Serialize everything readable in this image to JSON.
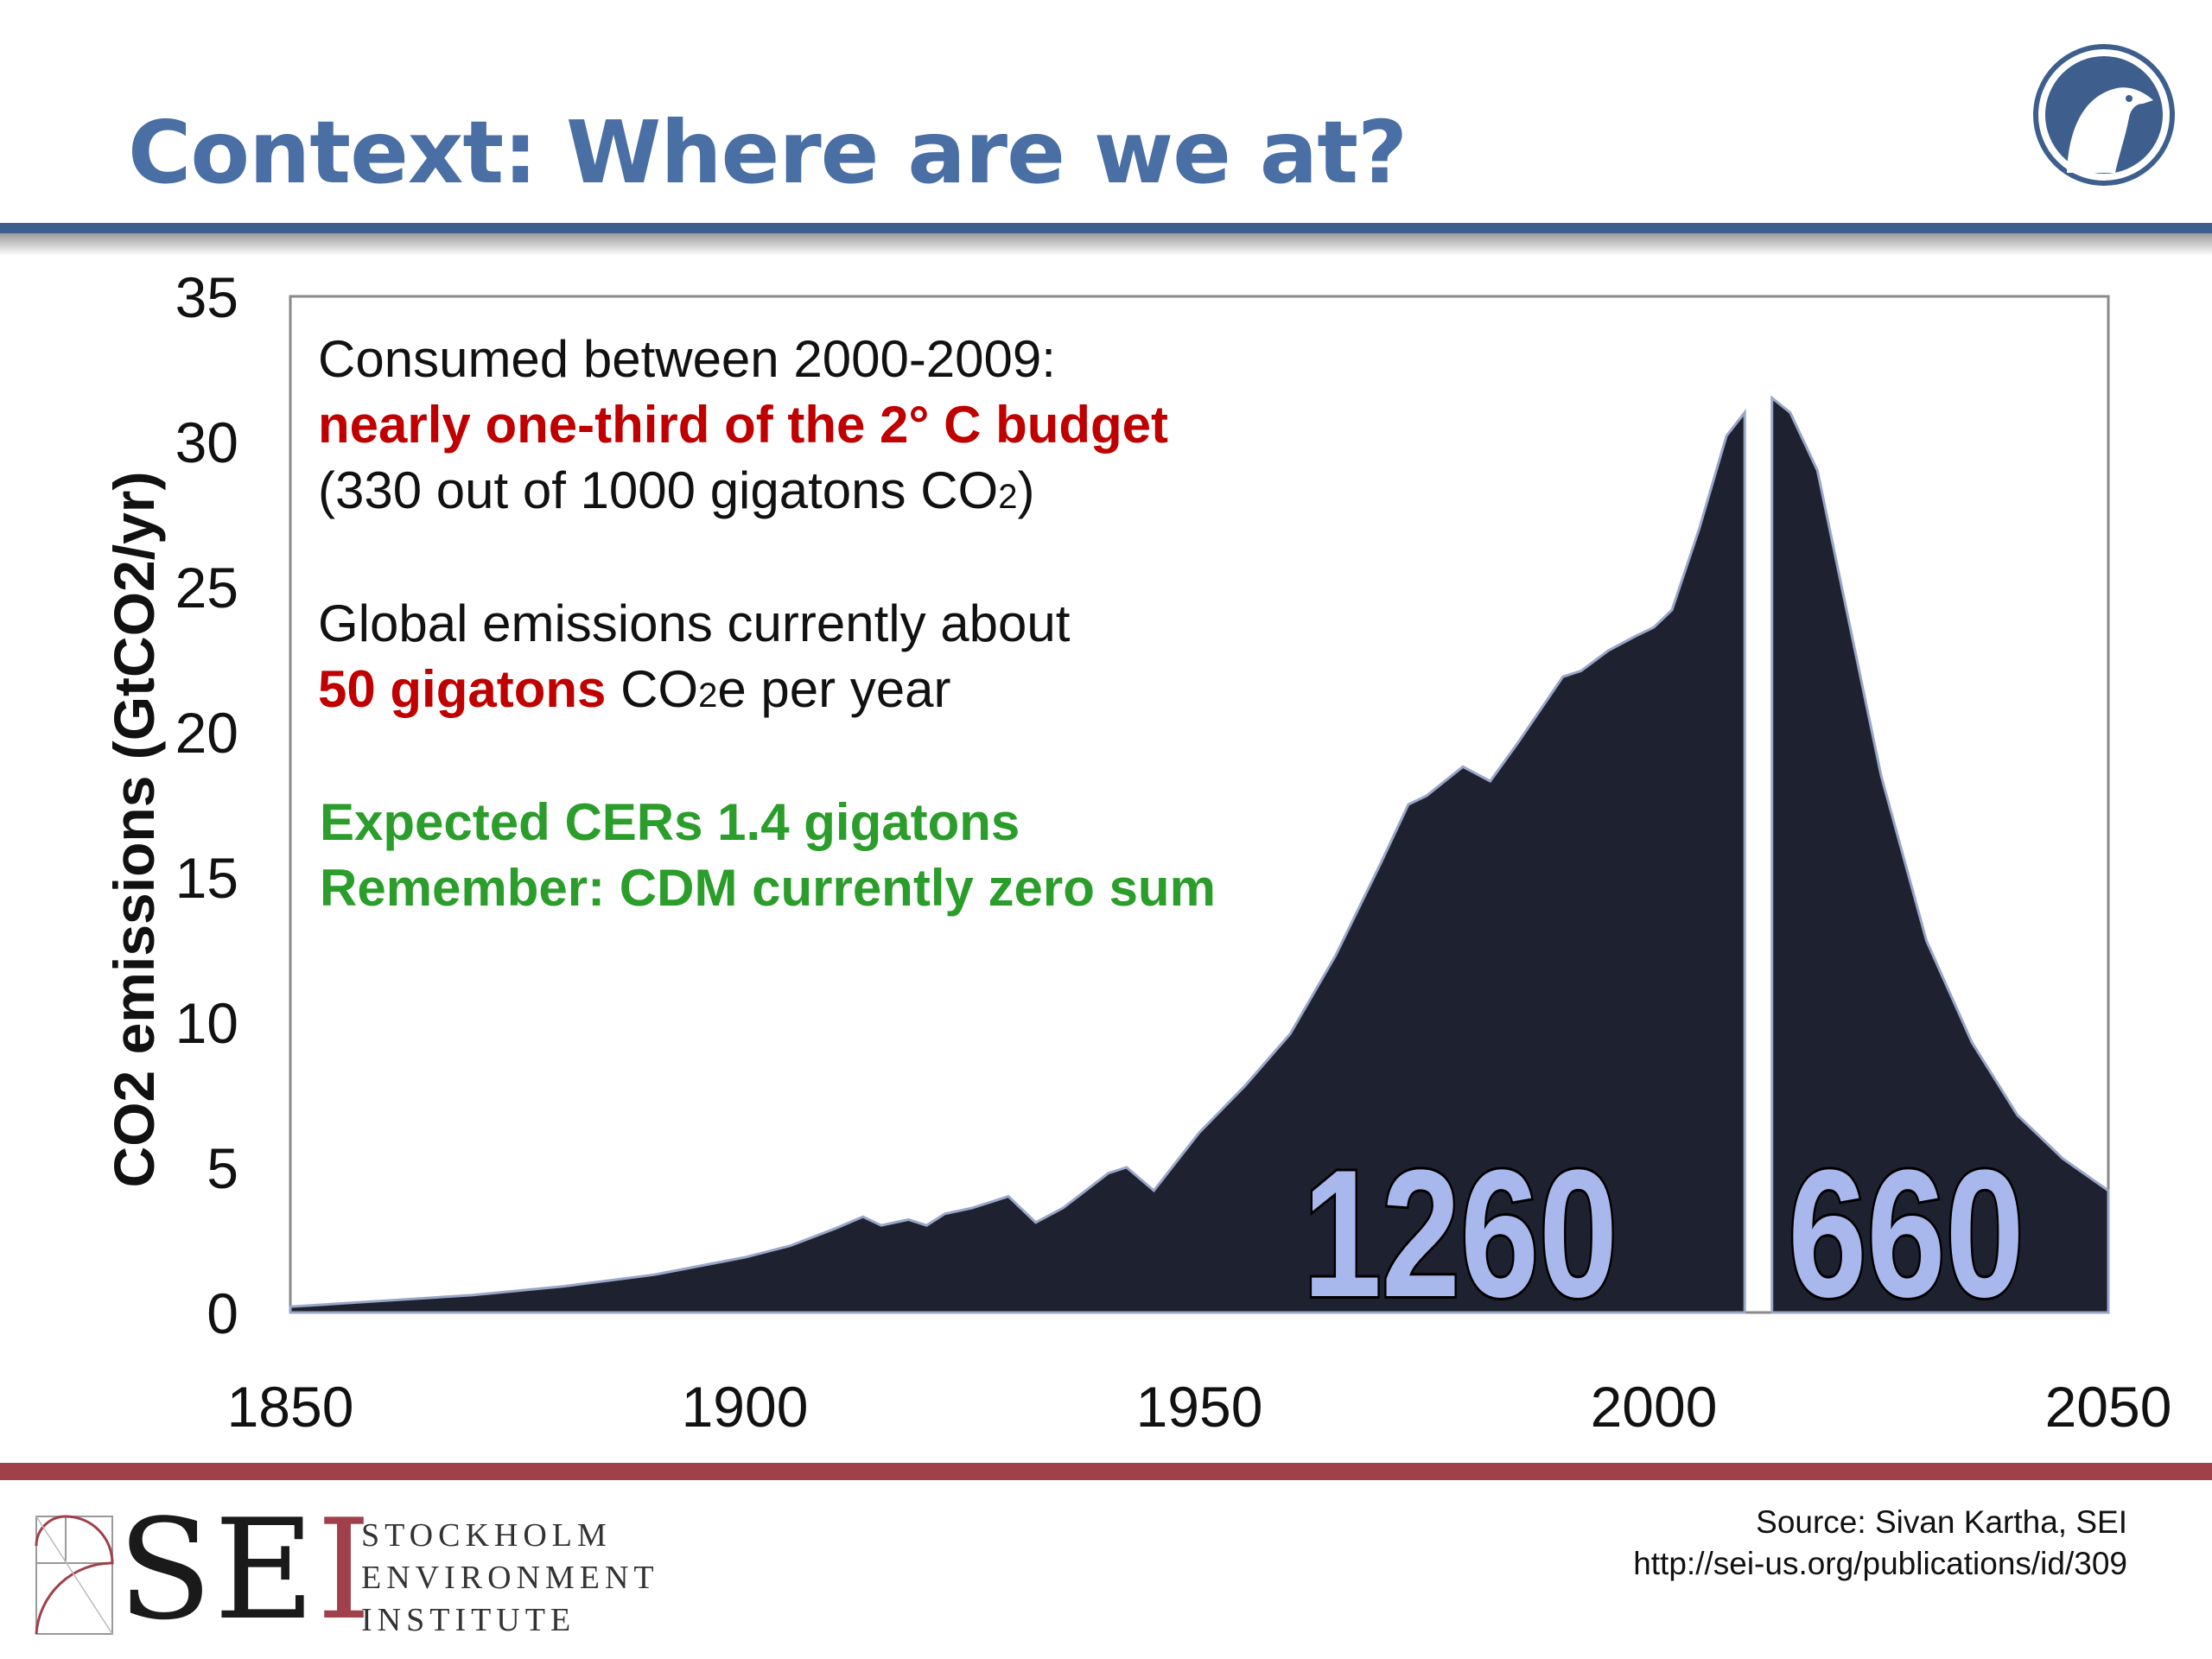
{
  "slide": {
    "title": "Context: Where are we at?",
    "colors": {
      "title": "#4a6fa5",
      "top_bar": "#3e5f8e",
      "bottom_bar": "#a0404b",
      "area_fill": "#1e2230",
      "highlight_number": "#a9b8ec"
    },
    "logo_icon": "bird-head-circle-icon"
  },
  "chart_data": {
    "type": "area",
    "ylabel": "CO2 emissions (GtCO2/yr)",
    "xlabel": "",
    "xlim": [
      1850,
      2050
    ],
    "ylim": [
      0,
      35
    ],
    "x_ticks": [
      1850,
      1900,
      1950,
      2000,
      2050
    ],
    "y_ticks": [
      0,
      5,
      10,
      15,
      20,
      25,
      30,
      35
    ],
    "grid": false,
    "series": [
      {
        "segment": "historical",
        "x": [
          1850,
          1860,
          1870,
          1880,
          1890,
          1900,
          1905,
          1910,
          1913,
          1915,
          1918,
          1920,
          1922,
          1925,
          1929,
          1932,
          1935,
          1940,
          1942,
          1945,
          1948,
          1950,
          1955,
          1960,
          1965,
          1970,
          1973,
          1975,
          1979,
          1982,
          1985,
          1990,
          1992,
          1995,
          1998,
          2000,
          2002,
          2005,
          2008,
          2010
        ],
        "y": [
          0.2,
          0.4,
          0.6,
          0.9,
          1.3,
          1.9,
          2.3,
          2.9,
          3.3,
          3.0,
          3.2,
          3.0,
          3.4,
          3.6,
          4.0,
          3.1,
          3.6,
          4.8,
          5.0,
          4.2,
          5.4,
          6.2,
          7.8,
          9.6,
          12.3,
          15.5,
          17.5,
          17.8,
          18.8,
          18.3,
          19.6,
          21.9,
          22.1,
          22.8,
          23.3,
          23.6,
          24.2,
          27.0,
          30.2,
          31.0
        ]
      },
      {
        "segment": "remaining budget",
        "x": [
          2013,
          2015,
          2018,
          2020,
          2025,
          2030,
          2035,
          2040,
          2045,
          2050
        ],
        "y": [
          31.5,
          31.0,
          29.0,
          26.0,
          18.5,
          12.8,
          9.3,
          6.8,
          5.3,
          4.2
        ]
      }
    ],
    "annotations": {
      "left_total": "1260",
      "right_total": "660"
    }
  },
  "notes": {
    "line1": "Consumed between 2000-2009:",
    "line2": "nearly one-third of the 2°  C budget",
    "line3a": "(330 out of 1000 gigatons CO",
    "line3sub": "2",
    "line3b": ")",
    "line4": "Global emissions currently about",
    "line5red": "50 gigatons",
    "line5a": " CO",
    "line5sub": "2",
    "line5b": "e per year",
    "line6": "Expected CERs 1.4 gigatons",
    "line7": "Remember: CDM currently zero sum"
  },
  "footer": {
    "sei_letters_a": "SE",
    "sei_letters_b": "I",
    "org_line1": "STOCKHOLM",
    "org_line2": "ENVIRONMENT",
    "org_line3": "INSTITUTE",
    "source_line1": "Source: Sivan Kartha, SEI",
    "source_line2": "http://sei-us.org/publications/id/309",
    "logo_icon": "golden-ratio-spiral-icon"
  }
}
